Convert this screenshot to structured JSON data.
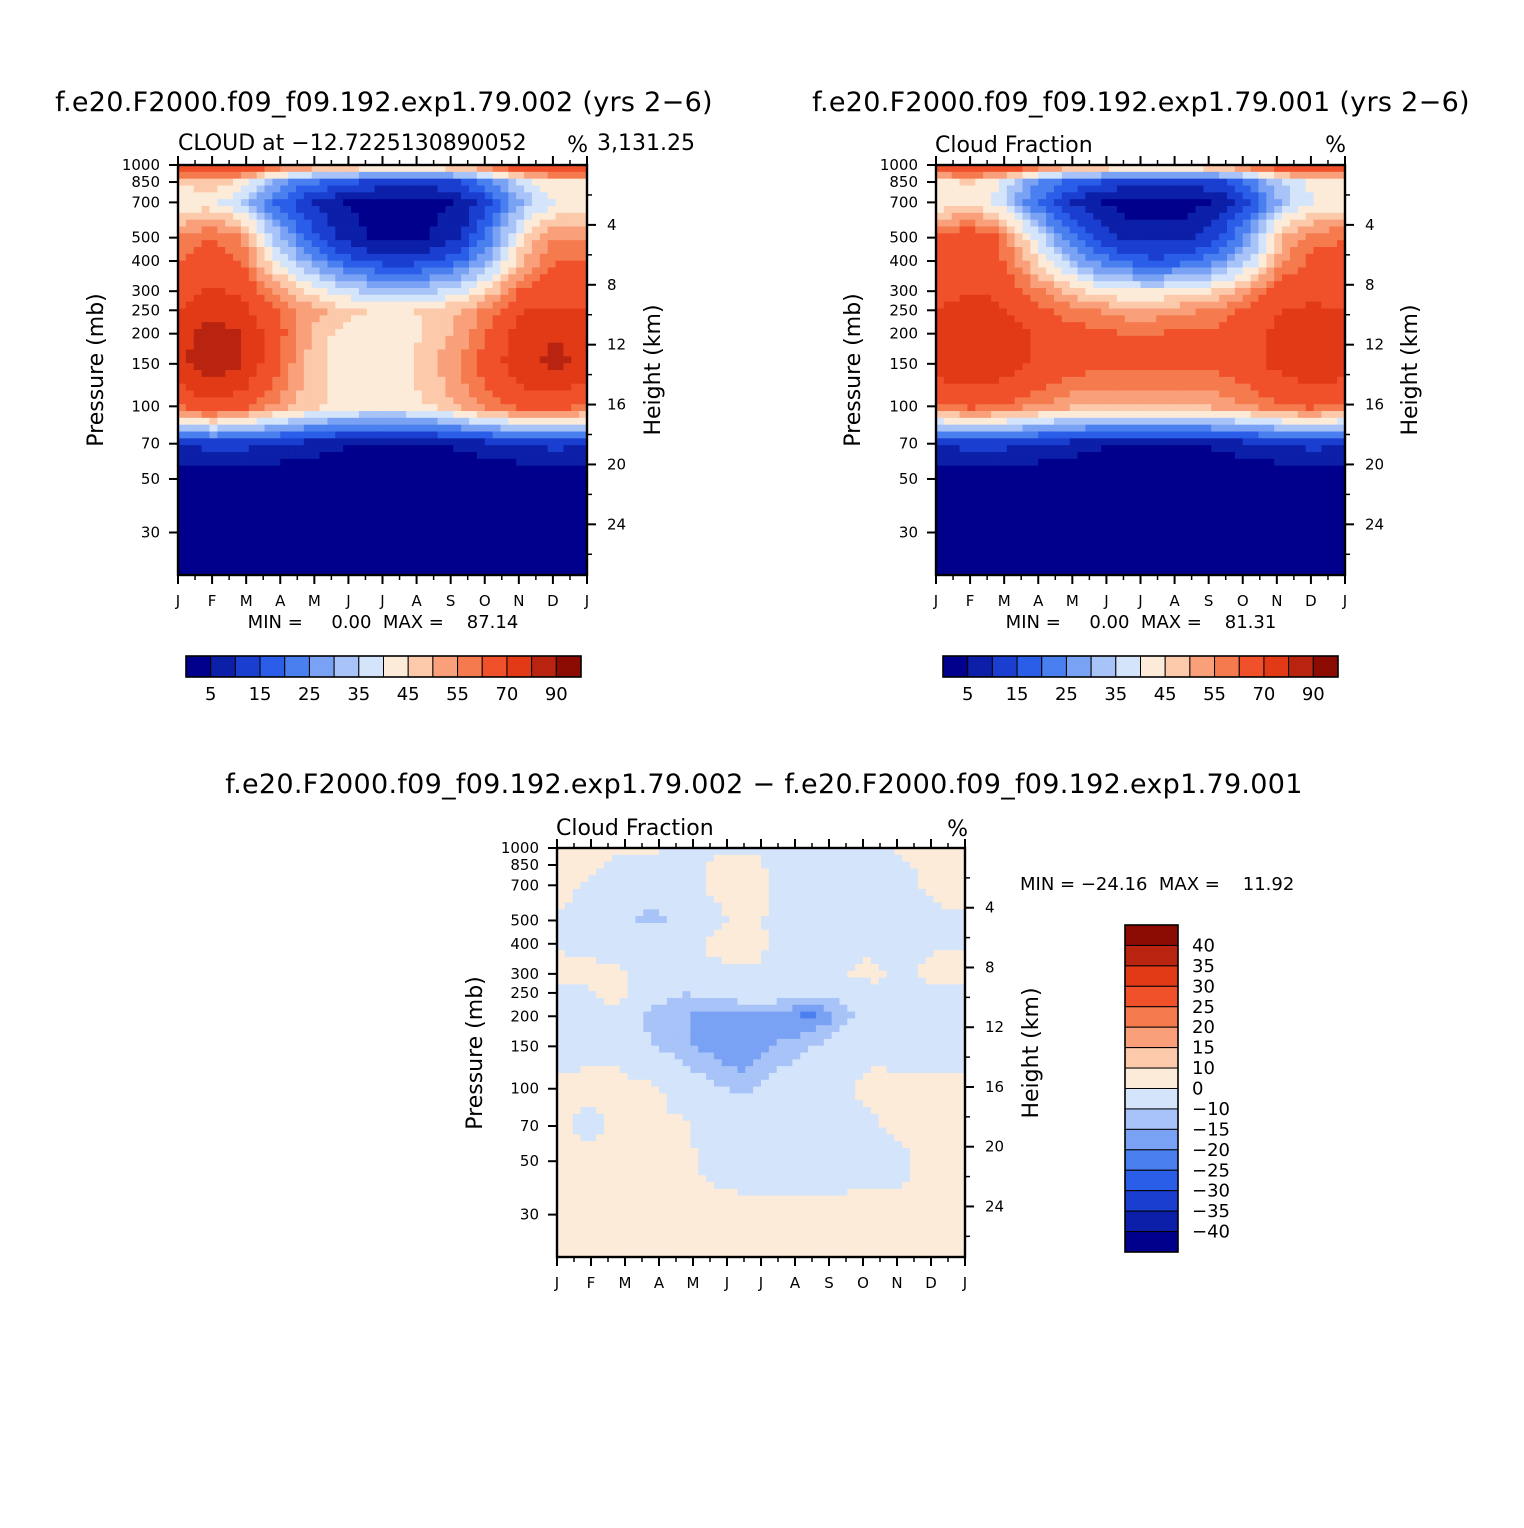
{
  "panels": [
    {
      "title": "f.e20.F2000.f09_f09.192.exp1.79.002 (yrs 2−6)",
      "subtitle_left": "CLOUD at −12.7225130890052",
      "subtitle_right": "3,131.25",
      "units": "%",
      "ylabel": "Pressure (mb)",
      "ylabel_right": "Height (km)",
      "minmax": "MIN =     0.00  MAX =    87.14"
    },
    {
      "title": "f.e20.F2000.f09_f09.192.exp1.79.001 (yrs 2−6)",
      "subtitle_left": "Cloud Fraction",
      "subtitle_right": "",
      "units": "%",
      "ylabel": "Pressure (mb)",
      "ylabel_right": "Height (km)",
      "minmax": "MIN =     0.00  MAX =    81.31"
    },
    {
      "title": "f.e20.F2000.f09_f09.192.exp1.79.002 − f.e20.F2000.f09_f09.192.exp1.79.001",
      "subtitle_left": "Cloud Fraction",
      "subtitle_right": "",
      "units": "%",
      "ylabel": "Pressure (mb)",
      "ylabel_right": "Height (km)",
      "minmax": "MIN = −24.16  MAX =    11.92"
    }
  ],
  "chart_data": [
    {
      "type": "heatmap",
      "kind": "annual-cycle pressure contour",
      "title": "f.e20.F2000.f09_f09.192.exp1.79.002 (yrs 2−6)",
      "x_ticks": [
        "J",
        "F",
        "M",
        "A",
        "M",
        "J",
        "J",
        "A",
        "S",
        "O",
        "N",
        "D",
        "J"
      ],
      "y_ticks_pressure_mb": [
        "30",
        "50",
        "70",
        "100",
        "150",
        "200",
        "250",
        "300",
        "400",
        "500",
        "700",
        "850",
        "1000"
      ],
      "y_ticks_height_km": [
        "24",
        "20",
        "16",
        "12",
        "8",
        "4"
      ],
      "pressure_levels": [
        1000,
        850,
        700,
        500,
        400,
        300,
        250,
        200,
        150,
        100,
        70,
        50,
        30,
        20
      ],
      "values": [
        [
          70,
          75,
          72,
          64,
          58,
          54,
          52,
          50,
          52,
          54,
          62,
          70,
          72,
          72
        ],
        [
          45,
          50,
          44,
          30,
          22,
          18,
          14,
          12,
          12,
          15,
          25,
          38,
          45,
          45
        ],
        [
          40,
          42,
          35,
          20,
          12,
          6,
          3,
          3,
          3,
          6,
          15,
          32,
          40,
          40
        ],
        [
          55,
          60,
          55,
          35,
          20,
          10,
          5,
          5,
          5,
          10,
          25,
          45,
          55,
          55
        ],
        [
          60,
          65,
          60,
          42,
          30,
          20,
          14,
          12,
          14,
          20,
          32,
          50,
          60,
          60
        ],
        [
          65,
          72,
          68,
          55,
          45,
          38,
          34,
          32,
          34,
          38,
          48,
          62,
          65,
          65
        ],
        [
          70,
          78,
          74,
          62,
          54,
          48,
          45,
          44,
          46,
          50,
          58,
          70,
          72,
          70
        ],
        [
          76,
          84,
          80,
          65,
          52,
          44,
          42,
          42,
          46,
          52,
          62,
          76,
          80,
          76
        ],
        [
          78,
          86,
          82,
          64,
          50,
          44,
          43,
          43,
          48,
          56,
          66,
          78,
          82,
          78
        ],
        [
          60,
          68,
          64,
          55,
          48,
          44,
          43,
          43,
          45,
          52,
          58,
          64,
          64,
          60
        ],
        [
          10,
          12,
          12,
          10,
          8,
          6,
          5,
          5,
          5,
          6,
          8,
          10,
          12,
          10
        ],
        [
          1,
          1,
          1,
          1,
          1,
          1,
          1,
          1,
          1,
          1,
          1,
          1,
          1,
          1
        ],
        [
          0,
          0,
          0,
          0,
          0,
          0,
          0,
          0,
          0,
          0,
          0,
          0,
          0,
          0
        ],
        [
          0,
          0,
          0,
          0,
          0,
          0,
          0,
          0,
          0,
          0,
          0,
          0,
          0,
          0
        ]
      ],
      "levels": [
        0,
        5,
        10,
        15,
        20,
        25,
        30,
        35,
        40,
        45,
        50,
        55,
        60,
        70,
        80,
        90
      ],
      "min": 0.0,
      "max": 87.14,
      "colorbar_labels": [
        "5",
        "15",
        "25",
        "35",
        "45",
        "55",
        "70",
        "90"
      ]
    },
    {
      "type": "heatmap",
      "kind": "annual-cycle pressure contour",
      "title": "f.e20.F2000.f09_f09.192.exp1.79.001 (yrs 2−6)",
      "x_ticks": [
        "J",
        "F",
        "M",
        "A",
        "M",
        "J",
        "J",
        "A",
        "S",
        "O",
        "N",
        "D",
        "J"
      ],
      "y_ticks_pressure_mb": [
        "30",
        "50",
        "70",
        "100",
        "150",
        "200",
        "250",
        "300",
        "400",
        "500",
        "700",
        "850",
        "1000"
      ],
      "y_ticks_height_km": [
        "24",
        "20",
        "16",
        "12",
        "8",
        "4"
      ],
      "pressure_levels": [
        1000,
        850,
        700,
        500,
        400,
        300,
        250,
        200,
        150,
        100,
        70,
        50,
        30,
        20
      ],
      "values": [
        [
          70,
          75,
          72,
          64,
          58,
          54,
          52,
          50,
          52,
          54,
          62,
          70,
          72,
          72
        ],
        [
          42,
          46,
          40,
          28,
          20,
          16,
          12,
          12,
          12,
          14,
          22,
          35,
          42,
          42
        ],
        [
          40,
          44,
          38,
          22,
          12,
          6,
          3,
          3,
          3,
          6,
          15,
          32,
          40,
          40
        ],
        [
          60,
          66,
          60,
          42,
          25,
          14,
          8,
          8,
          8,
          14,
          28,
          50,
          58,
          60
        ],
        [
          62,
          66,
          62,
          48,
          35,
          24,
          18,
          16,
          18,
          24,
          36,
          54,
          62,
          62
        ],
        [
          66,
          70,
          68,
          58,
          50,
          44,
          40,
          40,
          42,
          46,
          54,
          64,
          66,
          66
        ],
        [
          70,
          74,
          72,
          64,
          58,
          55,
          52,
          52,
          54,
          56,
          62,
          70,
          72,
          70
        ],
        [
          76,
          78,
          76,
          70,
          64,
          62,
          60,
          60,
          62,
          62,
          66,
          74,
          78,
          76
        ],
        [
          77,
          78,
          76,
          70,
          64,
          62,
          62,
          62,
          62,
          62,
          66,
          74,
          78,
          77
        ],
        [
          58,
          62,
          60,
          56,
          52,
          50,
          50,
          50,
          50,
          52,
          55,
          60,
          62,
          58
        ],
        [
          10,
          12,
          12,
          10,
          8,
          6,
          5,
          5,
          5,
          6,
          8,
          10,
          12,
          10
        ],
        [
          1,
          1,
          1,
          1,
          1,
          1,
          1,
          1,
          1,
          1,
          1,
          1,
          1,
          1
        ],
        [
          0,
          0,
          0,
          0,
          0,
          0,
          0,
          0,
          0,
          0,
          0,
          0,
          0,
          0
        ],
        [
          0,
          0,
          0,
          0,
          0,
          0,
          0,
          0,
          0,
          0,
          0,
          0,
          0,
          0
        ]
      ],
      "levels": [
        0,
        5,
        10,
        15,
        20,
        25,
        30,
        35,
        40,
        45,
        50,
        55,
        60,
        70,
        80,
        90
      ],
      "min": 0.0,
      "max": 81.31,
      "colorbar_labels": [
        "5",
        "15",
        "25",
        "35",
        "45",
        "55",
        "70",
        "90"
      ]
    },
    {
      "type": "heatmap",
      "kind": "annual-cycle pressure contour (difference)",
      "title": "f.e20.F2000.f09_f09.192.exp1.79.002 − f.e20.F2000.f09_f09.192.exp1.79.001",
      "x_ticks": [
        "J",
        "F",
        "M",
        "A",
        "M",
        "J",
        "J",
        "A",
        "S",
        "O",
        "N",
        "D",
        "J"
      ],
      "y_ticks_pressure_mb": [
        "30",
        "50",
        "70",
        "100",
        "150",
        "200",
        "250",
        "300",
        "400",
        "500",
        "700",
        "850",
        "1000"
      ],
      "y_ticks_height_km": [
        "24",
        "20",
        "16",
        "12",
        "8",
        "4"
      ],
      "pressure_levels": [
        1000,
        850,
        700,
        500,
        400,
        300,
        250,
        200,
        150,
        100,
        70,
        50,
        30,
        20
      ],
      "values": [
        [
          1,
          2,
          1,
          1,
          -1,
          -1,
          -1,
          -1,
          -1,
          -1,
          -1,
          1,
          1,
          1
        ],
        [
          2,
          1,
          -1,
          -2,
          -3,
          1,
          3,
          -2,
          -1,
          -2,
          -1,
          -1,
          2,
          2
        ],
        [
          3,
          -1,
          -2,
          -3,
          -2,
          1,
          4,
          -1,
          -2,
          -1,
          -1,
          -1,
          1,
          3
        ],
        [
          -1,
          -3,
          -8,
          -13,
          -6,
          -2,
          3,
          -2,
          -1,
          -2,
          -1,
          -3,
          -1,
          -1
        ],
        [
          -1,
          -2,
          -3,
          -3,
          -3,
          2,
          4,
          -2,
          -2,
          -1,
          -2,
          -3,
          -1,
          -1
        ],
        [
          3,
          2,
          1,
          -2,
          -5,
          -2,
          -1,
          -2,
          -3,
          -1,
          2,
          -2,
          2,
          3
        ],
        [
          -2,
          -1,
          2,
          -5,
          -10,
          -8,
          -6,
          -6,
          -8,
          -9,
          -2,
          -4,
          -1,
          -2
        ],
        [
          -3,
          -1,
          -1,
          -14,
          -14,
          -19,
          -16,
          -17,
          -22,
          -14,
          -6,
          -3,
          -2,
          -3
        ],
        [
          -2,
          -1,
          -1,
          -9,
          -14,
          -17,
          -21,
          -14,
          -11,
          -5,
          -2,
          -3,
          -2,
          -2
        ],
        [
          1,
          1,
          1,
          2,
          -4,
          -9,
          -11,
          -7,
          -4,
          -2,
          2,
          2,
          1,
          1
        ],
        [
          2,
          -2,
          2,
          1,
          1,
          -4,
          -4,
          -3,
          -2,
          -2,
          -1,
          2,
          3,
          2
        ],
        [
          3,
          2,
          2,
          2,
          2,
          -2,
          -3,
          -3,
          -3,
          -3,
          -2,
          -2,
          3,
          3
        ],
        [
          2,
          2,
          2,
          2,
          2,
          2,
          2,
          2,
          2,
          2,
          2,
          2,
          2,
          2
        ],
        [
          2,
          2,
          2,
          2,
          2,
          2,
          2,
          2,
          2,
          2,
          2,
          2,
          2,
          2
        ]
      ],
      "levels": [
        -50,
        -40,
        -35,
        -30,
        -25,
        -20,
        -15,
        -10,
        0,
        10,
        15,
        20,
        25,
        30,
        35,
        40,
        50
      ],
      "min": -24.16,
      "max": 11.92,
      "colorbar_labels": [
        "40",
        "35",
        "30",
        "25",
        "20",
        "15",
        "10",
        "0",
        "−10",
        "−15",
        "−20",
        "−25",
        "−30",
        "−35",
        "−40"
      ]
    }
  ],
  "palettes": {
    "full": [
      "#00008c",
      "#0c1fa8",
      "#1a3fd0",
      "#2a5ee8",
      "#4a7ff0",
      "#7aa2f4",
      "#a8c3f8",
      "#d4e4fb",
      "#fdebd9",
      "#fcc9aa",
      "#f9a07a",
      "#f57a4e",
      "#f0502a",
      "#e23a16",
      "#b82410",
      "#8c0c04"
    ],
    "diff": [
      "#00008c",
      "#0c1fa8",
      "#1a3fd0",
      "#2a5ee8",
      "#4a7ff0",
      "#7aa2f4",
      "#a8c3f8",
      "#d4e4fb",
      "#fdebd9",
      "#fcc9aa",
      "#f9a07a",
      "#f57a4e",
      "#f0502a",
      "#e23a16",
      "#b82410",
      "#8c0c04"
    ]
  }
}
